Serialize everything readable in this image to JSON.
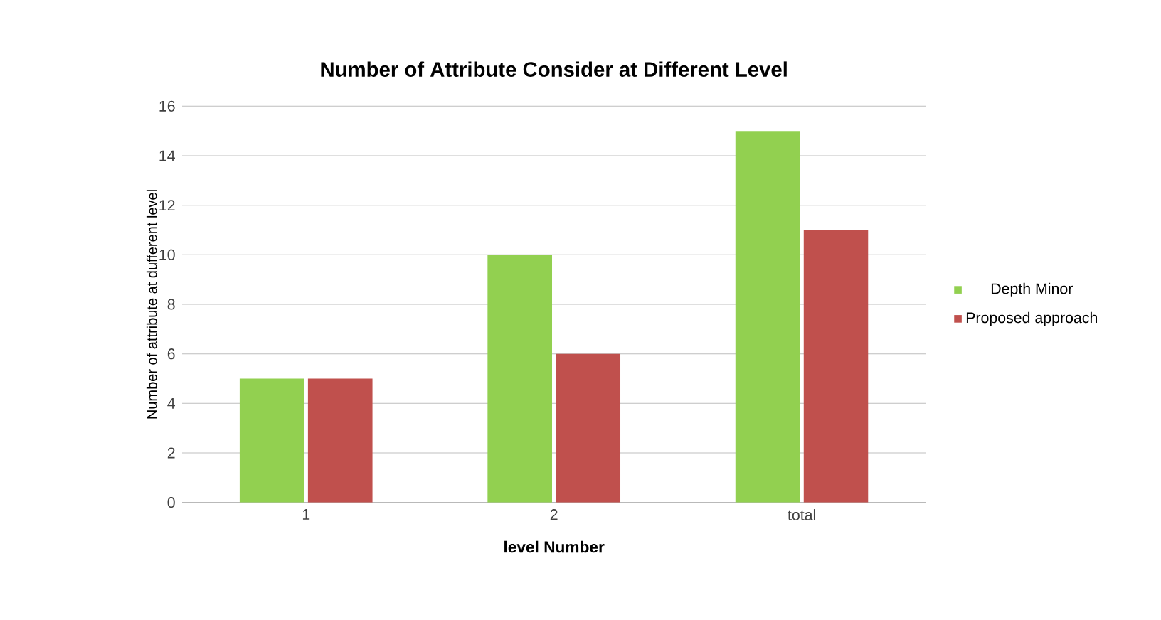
{
  "chart_data": {
    "type": "bar",
    "title": "Number of Attribute Consider at Different Level",
    "xlabel": "level  Number",
    "ylabel": "Number of attribute at dufferent level",
    "categories": [
      "1",
      "2",
      "total"
    ],
    "series": [
      {
        "name": "Depth Minor",
        "color": "#92d050",
        "values": [
          5,
          10,
          15
        ]
      },
      {
        "name": "Proposed approach",
        "color": "#c0504d",
        "values": [
          5,
          6,
          11
        ]
      }
    ],
    "ylim": [
      0,
      16
    ],
    "yticks": [
      0,
      2,
      4,
      6,
      8,
      10,
      12,
      14,
      16
    ],
    "grid": "y",
    "legend": "right"
  }
}
